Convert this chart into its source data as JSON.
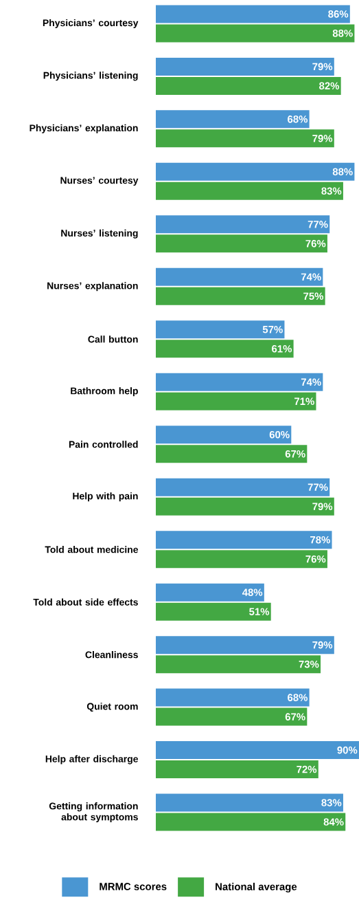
{
  "chart_data": {
    "type": "bar",
    "orientation": "horizontal",
    "legend": "bottom",
    "categories": [
      "Physicians’ courtesy",
      "Physicians’ listening",
      "Physicians’ explanation",
      "Nurses’ courtesy",
      "Nurses’ listening",
      "Nurses’ explanation",
      "Call button",
      "Bathroom help",
      "Pain controlled",
      "Help with pain",
      "Told about medicine",
      "Told about side effects",
      "Cleanliness",
      "Quiet room",
      "Help after discharge",
      "Getting information about symptoms"
    ],
    "series": [
      {
        "name": "MRMC scores",
        "color": "#4a96d2",
        "values": [
          86,
          79,
          68,
          88,
          77,
          74,
          57,
          74,
          60,
          77,
          78,
          48,
          79,
          68,
          90,
          83
        ],
        "value_labels": [
          "86%",
          "79%",
          "68%",
          "88%",
          "77%",
          "74%",
          "57%",
          "74%",
          "60%",
          "77%",
          "78%",
          "48%",
          "79%",
          "68%",
          "90%",
          "83%"
        ]
      },
      {
        "name": "National average",
        "color": "#43a843",
        "values": [
          88,
          82,
          79,
          83,
          76,
          75,
          61,
          71,
          67,
          79,
          76,
          51,
          73,
          67,
          72,
          84
        ],
        "value_labels": [
          "88%",
          "82%",
          "79%",
          "83%",
          "76%",
          "75%",
          "61%",
          "71%",
          "67%",
          "79%",
          "76%",
          "51%",
          "73%",
          "67%",
          "72%",
          "84%"
        ]
      }
    ]
  }
}
